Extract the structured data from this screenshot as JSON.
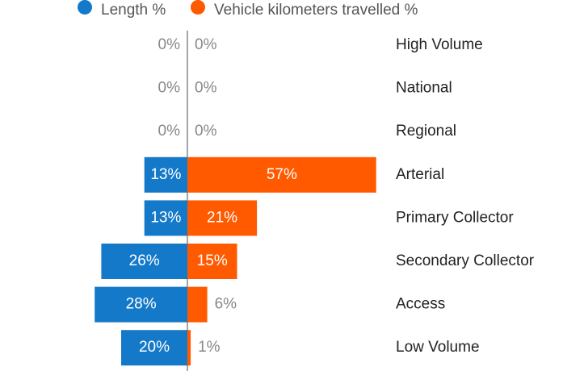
{
  "chart_data": {
    "type": "butterfly-bar",
    "categories": [
      "High Volume",
      "National",
      "Regional",
      "Arterial",
      "Primary Collector",
      "Secondary Collector",
      "Access",
      "Low Volume"
    ],
    "series": [
      {
        "name": "Length %",
        "color": "#1479c9",
        "values": [
          0,
          0,
          0,
          13,
          13,
          26,
          28,
          20
        ],
        "value_labels": [
          "0%",
          "0%",
          "0%",
          "13%",
          "13%",
          "26%",
          "28%",
          "20%"
        ]
      },
      {
        "name": "Vehicle kilometers travelled %",
        "color": "#ff5a00",
        "values": [
          0,
          0,
          0,
          57,
          21,
          15,
          6,
          1
        ],
        "value_labels": [
          "0%",
          "0%",
          "0%",
          "57%",
          "21%",
          "15%",
          "6%",
          "1%"
        ]
      }
    ],
    "legend": "top"
  }
}
